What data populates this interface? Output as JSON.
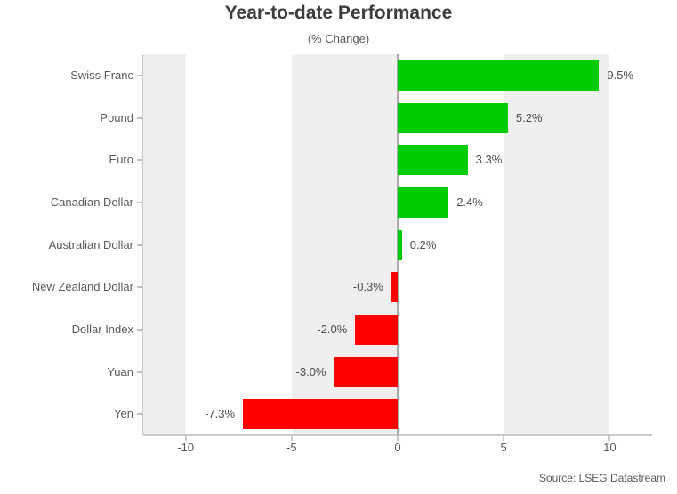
{
  "header": {
    "title": "Year-to-date Performance",
    "subtitle": "(% Change)"
  },
  "footer": {
    "source": "Source: LSEG Datastream"
  },
  "chart_data": {
    "type": "bar",
    "orientation": "horizontal",
    "title": "Year-to-date Performance",
    "subtitle": "(% Change)",
    "xlabel": "",
    "ylabel": "",
    "categories": [
      "Swiss Franc",
      "Pound",
      "Euro",
      "Canadian Dollar",
      "Australian Dollar",
      "New Zealand Dollar",
      "Dollar Index",
      "Yuan",
      "Yen"
    ],
    "values": [
      9.5,
      5.2,
      3.3,
      2.4,
      0.2,
      -0.3,
      -2.0,
      -3.0,
      -7.3
    ],
    "value_labels": [
      "9.5%",
      "5.2%",
      "3.3%",
      "2.4%",
      "0.2%",
      "-0.3%",
      "-2.0%",
      "-3.0%",
      "-7.3%"
    ],
    "xlim": [
      -12,
      12
    ],
    "xticks": [
      -10,
      -5,
      0,
      5,
      10
    ],
    "xtick_labels": [
      "-10",
      "-5",
      "0",
      "5",
      "10"
    ],
    "shaded_bands": [
      [
        -12,
        -10
      ],
      [
        -5,
        0
      ],
      [
        5,
        10
      ]
    ],
    "grid": false,
    "legend": false,
    "colors": {
      "positive": "#00cc00",
      "negative": "#ff0000",
      "band": "#efefef",
      "axis_line": "#c9c9c9",
      "zero_line": "#ababab",
      "title_text": "#3d3d3d",
      "label_text": "#595959",
      "value_text": "#4c4c4c"
    },
    "source": "Source: LSEG Datastream"
  }
}
